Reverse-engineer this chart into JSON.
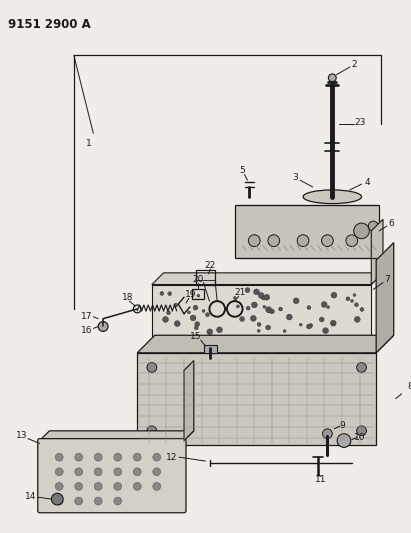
{
  "title": "9151 2900 A",
  "bg_color": "#f0ede8",
  "line_color": "#1a1a1a",
  "text_color": "#1a1a1a",
  "fig_width": 4.11,
  "fig_height": 5.33,
  "dpi": 100
}
